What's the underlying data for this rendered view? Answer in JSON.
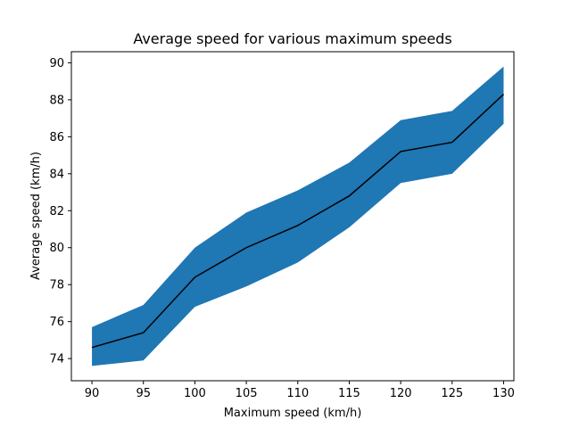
{
  "chart_data": {
    "type": "line",
    "title": "Average speed for various maximum speeds",
    "xlabel": "Maximum speed (km/h)",
    "ylabel": "Average speed (km/h)",
    "x": [
      90,
      95,
      100,
      105,
      110,
      115,
      120,
      125,
      130
    ],
    "x_ticks": [
      "90",
      "95",
      "100",
      "105",
      "110",
      "115",
      "120",
      "125",
      "130"
    ],
    "y_ticks": [
      "74",
      "76",
      "78",
      "80",
      "82",
      "84",
      "86",
      "88",
      "90"
    ],
    "xlim": [
      88.0,
      131.0
    ],
    "ylim": [
      72.8,
      90.6
    ],
    "grid": false,
    "series": [
      {
        "values": [
          74.6,
          75.4,
          78.4,
          80.0,
          81.2,
          82.8,
          85.2,
          85.7,
          88.3
        ],
        "lower": [
          73.6,
          73.9,
          76.8,
          77.9,
          79.2,
          81.1,
          83.5,
          84.0,
          86.7
        ],
        "upper": [
          75.7,
          76.9,
          80.0,
          81.9,
          83.1,
          84.6,
          86.9,
          87.4,
          89.8
        ],
        "line_color": "#000000",
        "band_color": "#1f77b4"
      }
    ]
  }
}
